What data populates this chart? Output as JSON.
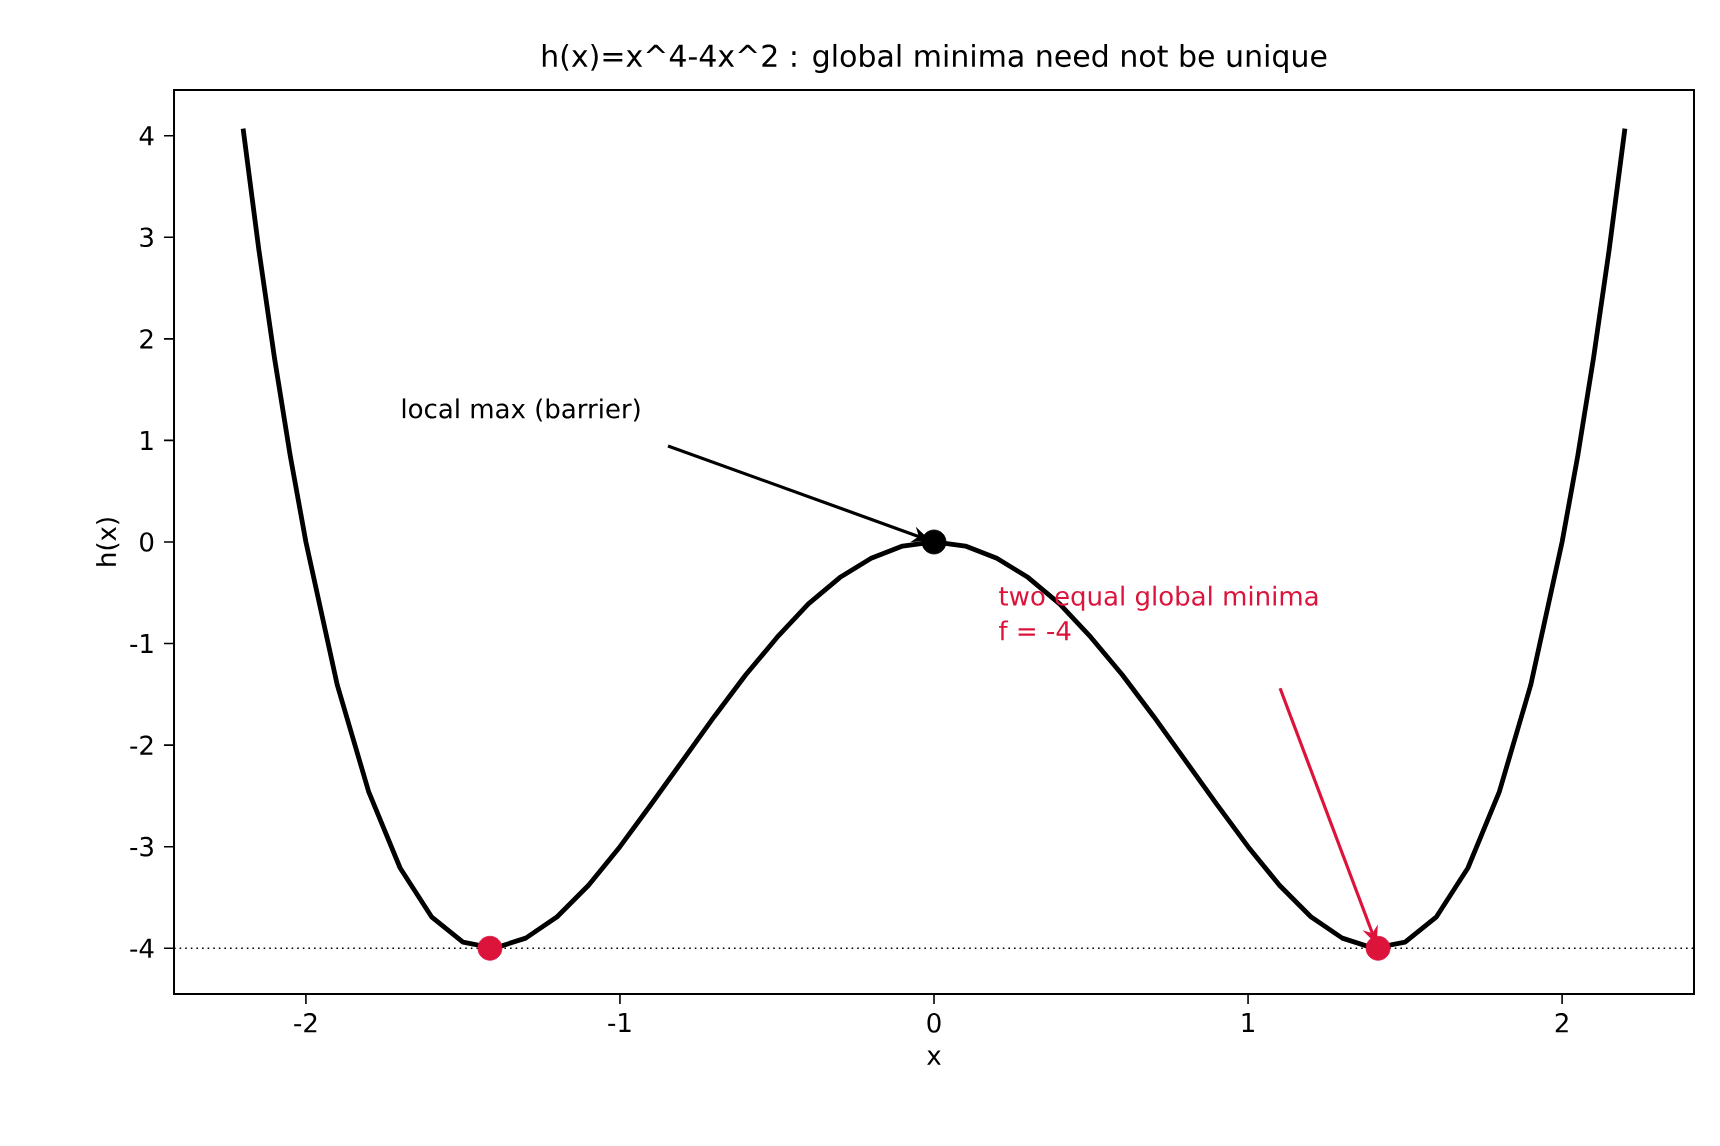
{
  "chart_data": {
    "type": "line",
    "title": "h(x)=x^4-4x^2 : global minima need not be unique",
    "xlabel": "x",
    "ylabel": "h(x)",
    "xlim": [
      -2.42,
      2.42
    ],
    "ylim": [
      -4.45,
      4.45
    ],
    "xticks": [
      -2,
      -1,
      0,
      1,
      2
    ],
    "yticks": [
      -4,
      -3,
      -2,
      -1,
      0,
      1,
      2,
      3,
      4
    ],
    "series": [
      {
        "color": "#000000",
        "marker": "none",
        "x": [
          -2.2,
          -2.15,
          -2.1,
          -2.05,
          -2.0,
          -1.9,
          -1.8,
          -1.7,
          -1.6,
          -1.5,
          -1.414,
          -1.4,
          -1.3,
          -1.2,
          -1.1,
          -1.0,
          -0.9,
          -0.8,
          -0.7,
          -0.6,
          -0.5,
          -0.4,
          -0.3,
          -0.2,
          -0.1,
          0.0,
          0.1,
          0.2,
          0.3,
          0.4,
          0.5,
          0.6,
          0.7,
          0.8,
          0.9,
          1.0,
          1.1,
          1.2,
          1.3,
          1.4,
          1.414,
          1.5,
          1.6,
          1.7,
          1.8,
          1.9,
          2.0,
          2.05,
          2.1,
          2.15,
          2.2
        ],
        "values": [
          4.07,
          2.88,
          1.81,
          0.85,
          0.0,
          -1.41,
          -2.46,
          -3.21,
          -3.69,
          -3.94,
          null,
          -4.0,
          -3.9,
          -3.69,
          -3.38,
          -3.0,
          -2.58,
          -2.15,
          -1.72,
          -1.31,
          -0.94,
          -0.61,
          -0.35,
          -0.16,
          -0.04,
          0.0,
          -0.04,
          -0.16,
          -0.35,
          -0.61,
          -0.94,
          -1.31,
          -1.72,
          -2.15,
          -2.58,
          -3.0,
          -3.38,
          -3.69,
          -3.9,
          -4.0,
          null,
          -3.94,
          -3.69,
          -3.21,
          -2.46,
          -1.41,
          0.0,
          0.85,
          1.81,
          2.88,
          4.07
        ]
      },
      {
        "type": "scatter",
        "color": "#000000",
        "marker": "circle",
        "x": [
          0.0
        ],
        "values": [
          0.0
        ]
      },
      {
        "type": "scatter",
        "color": "#dc143c",
        "marker": "circle",
        "x": [
          -1.414,
          1.414
        ],
        "values": [
          -4.0,
          -4.0
        ]
      }
    ],
    "ref_lines": [
      {
        "axis": "y",
        "value": -4,
        "color": "#000000",
        "line_style": "dotted"
      }
    ],
    "annotations": [
      "local max (barrier)",
      "two equal global minima",
      "f = -4"
    ]
  }
}
